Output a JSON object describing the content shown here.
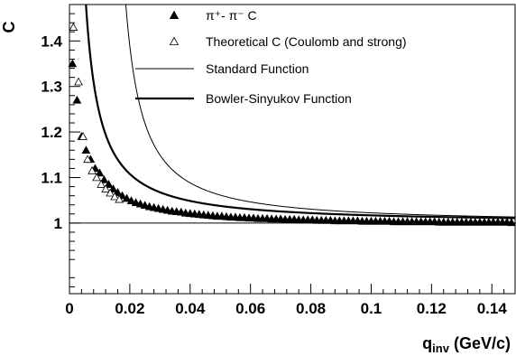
{
  "chart_data": {
    "type": "scatter",
    "xlabel": {
      "main": "q",
      "sub": "inv",
      "rest": " (GeV/c)"
    },
    "ylabel": "C",
    "xlim": [
      0,
      0.148
    ],
    "ylim": [
      0.845,
      1.48
    ],
    "x_ticks": [
      {
        "value": 0,
        "label": "0"
      },
      {
        "value": 0.02,
        "label": "0.02"
      },
      {
        "value": 0.04,
        "label": "0.04"
      },
      {
        "value": 0.06,
        "label": "0.06"
      },
      {
        "value": 0.08,
        "label": "0.08"
      },
      {
        "value": 0.1,
        "label": "0.1"
      },
      {
        "value": 0.12,
        "label": "0.12"
      },
      {
        "value": 0.14,
        "label": "0.14"
      }
    ],
    "y_ticks": [
      {
        "value": 1.0,
        "label": "1"
      },
      {
        "value": 1.1,
        "label": "1.1"
      },
      {
        "value": 1.2,
        "label": "1.2"
      },
      {
        "value": 1.3,
        "label": "1.3"
      },
      {
        "value": 1.4,
        "label": "1.4"
      }
    ],
    "reference_line_y": 1.0,
    "legend": [
      {
        "marker": "filled-triangle",
        "label": "π⁺- π⁻ C"
      },
      {
        "marker": "open-triangle",
        "label": "Theoretical C (Coulomb and strong)"
      },
      {
        "marker": "thin-line",
        "label": "Standard Function"
      },
      {
        "marker": "thick-line",
        "label": "Bowler-Sinyukov Function"
      }
    ],
    "series": [
      {
        "name": "π⁺- π⁻ C",
        "marker": "filled-triangle",
        "points": [
          [
            0.001,
            1.35
          ],
          [
            0.0025,
            1.27
          ],
          [
            0.004,
            1.19
          ],
          [
            0.0055,
            1.16
          ],
          [
            0.007,
            1.14
          ],
          [
            0.0085,
            1.12
          ],
          [
            0.01,
            1.11
          ],
          [
            0.0115,
            1.095
          ],
          [
            0.013,
            1.085
          ],
          [
            0.0145,
            1.075
          ],
          [
            0.016,
            1.067
          ],
          [
            0.0175,
            1.06
          ],
          [
            0.019,
            1.054
          ],
          [
            0.0205,
            1.049
          ],
          [
            0.022,
            1.045
          ],
          [
            0.0235,
            1.042
          ],
          [
            0.025,
            1.039
          ],
          [
            0.0265,
            1.036
          ],
          [
            0.028,
            1.034
          ],
          [
            0.0295,
            1.032
          ],
          [
            0.031,
            1.03
          ],
          [
            0.0325,
            1.028
          ],
          [
            0.034,
            1.026
          ],
          [
            0.0355,
            1.025
          ],
          [
            0.037,
            1.024
          ],
          [
            0.0385,
            1.022
          ],
          [
            0.04,
            1.021
          ],
          [
            0.0415,
            1.02
          ],
          [
            0.043,
            1.019
          ],
          [
            0.0445,
            1.018
          ],
          [
            0.046,
            1.017
          ],
          [
            0.0475,
            1.016
          ],
          [
            0.049,
            1.015
          ],
          [
            0.0505,
            1.015
          ],
          [
            0.052,
            1.014
          ],
          [
            0.0535,
            1.013
          ],
          [
            0.055,
            1.013
          ],
          [
            0.0565,
            1.012
          ],
          [
            0.058,
            1.012
          ],
          [
            0.0595,
            1.011
          ],
          [
            0.061,
            1.011
          ],
          [
            0.0625,
            1.01
          ],
          [
            0.064,
            1.01
          ],
          [
            0.0655,
            1.01
          ],
          [
            0.067,
            1.009
          ],
          [
            0.0685,
            1.009
          ],
          [
            0.07,
            1.009
          ],
          [
            0.0715,
            1.008
          ],
          [
            0.073,
            1.008
          ],
          [
            0.0745,
            1.008
          ],
          [
            0.076,
            1.007
          ],
          [
            0.0775,
            1.007
          ],
          [
            0.079,
            1.007
          ],
          [
            0.0805,
            1.007
          ],
          [
            0.082,
            1.006
          ],
          [
            0.0835,
            1.006
          ],
          [
            0.085,
            1.006
          ],
          [
            0.0865,
            1.006
          ],
          [
            0.088,
            1.005
          ],
          [
            0.0895,
            1.005
          ],
          [
            0.091,
            1.005
          ],
          [
            0.0925,
            1.005
          ],
          [
            0.094,
            1.005
          ],
          [
            0.0955,
            1.005
          ],
          [
            0.097,
            1.004
          ],
          [
            0.0985,
            1.004
          ],
          [
            0.1,
            1.004
          ],
          [
            0.1015,
            1.004
          ],
          [
            0.103,
            1.004
          ],
          [
            0.1045,
            1.004
          ],
          [
            0.106,
            1.004
          ],
          [
            0.1075,
            1.003
          ],
          [
            0.109,
            1.003
          ],
          [
            0.1105,
            1.003
          ],
          [
            0.112,
            1.003
          ],
          [
            0.1135,
            1.003
          ],
          [
            0.115,
            1.003
          ],
          [
            0.1165,
            1.003
          ],
          [
            0.118,
            1.003
          ],
          [
            0.1195,
            1.003
          ],
          [
            0.121,
            1.003
          ],
          [
            0.1225,
            1.002
          ],
          [
            0.124,
            1.002
          ],
          [
            0.1255,
            1.002
          ],
          [
            0.127,
            1.002
          ],
          [
            0.1285,
            1.002
          ],
          [
            0.13,
            1.002
          ],
          [
            0.1315,
            1.002
          ],
          [
            0.133,
            1.002
          ],
          [
            0.1345,
            1.002
          ],
          [
            0.136,
            1.002
          ],
          [
            0.1375,
            1.002
          ],
          [
            0.139,
            1.002
          ],
          [
            0.1405,
            1.002
          ],
          [
            0.142,
            1.002
          ],
          [
            0.1435,
            1.002
          ],
          [
            0.145,
            1.002
          ],
          [
            0.1465,
            1.001
          ]
        ]
      },
      {
        "name": "Theoretical C (Coulomb and strong)",
        "marker": "open-triangle",
        "points": [
          [
            0.0013,
            1.43
          ],
          [
            0.003,
            1.31
          ],
          [
            0.0045,
            1.19
          ],
          [
            0.006,
            1.14
          ],
          [
            0.0075,
            1.115
          ],
          [
            0.009,
            1.1
          ],
          [
            0.0105,
            1.085
          ],
          [
            0.012,
            1.075
          ],
          [
            0.0135,
            1.066
          ],
          [
            0.015,
            1.058
          ],
          [
            0.0165,
            1.052
          ]
        ]
      }
    ],
    "curves": [
      {
        "name": "Standard Function",
        "style": "thin",
        "formula": "1 + 0.00122/(x - 0.0118)^1.2",
        "x_from": 0.0135
      },
      {
        "name": "Bowler-Sinyukov Function",
        "style": "thick",
        "formula": "1 + 0.0012/x^1.15",
        "x_from": 0.0008
      }
    ]
  }
}
